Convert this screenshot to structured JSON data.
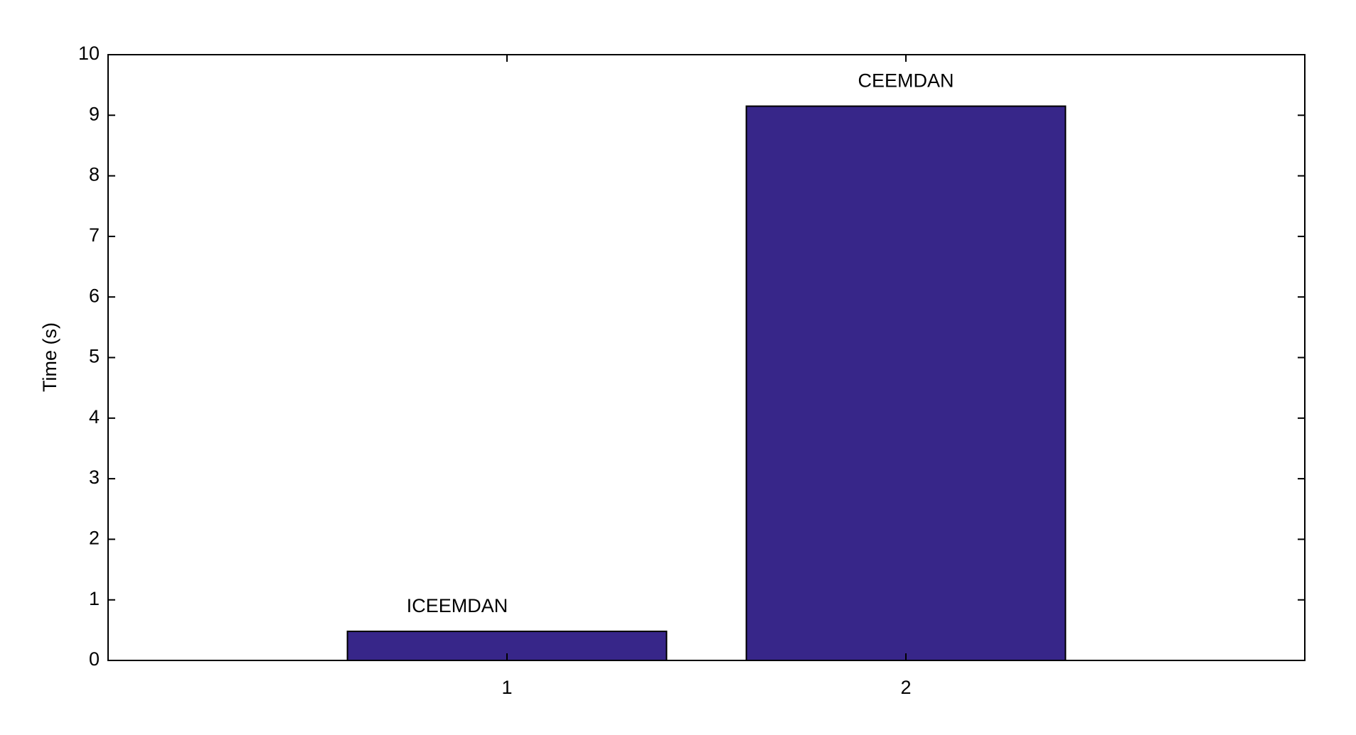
{
  "chart_data": {
    "type": "bar",
    "ylabel": "Time (s)",
    "x": [
      1,
      2
    ],
    "values": [
      0.48,
      9.15
    ],
    "bar_labels": [
      "ICEEMDAN",
      "CEEMDAN"
    ],
    "color": "#372689",
    "bar_width": 0.8,
    "xlim": [
      0,
      3
    ],
    "xticks": [
      1,
      2
    ],
    "ylim": [
      0,
      10
    ],
    "yticks": [
      0,
      1,
      2,
      3,
      4,
      5,
      6,
      7,
      8,
      9,
      10
    ]
  }
}
